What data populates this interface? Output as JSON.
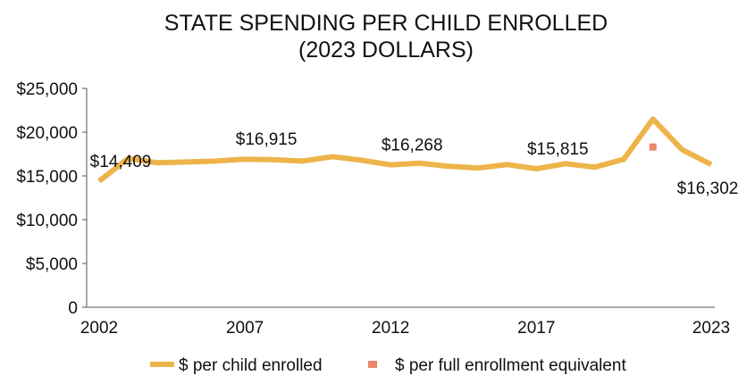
{
  "chart_data": {
    "type": "line",
    "title": "STATE SPENDING PER CHILD ENROLLED",
    "subtitle": "(2023 DOLLARS)",
    "xlabel": "",
    "ylabel": "",
    "ylim": [
      0,
      25000
    ],
    "xlim": [
      2002,
      2023
    ],
    "grid": false,
    "legend_placement": "bottom",
    "y_ticks": [
      0,
      5000,
      10000,
      15000,
      20000,
      25000
    ],
    "y_tick_labels": [
      "0",
      "$5,000",
      "$10,000",
      "$15,000",
      "$20,000",
      "$25,000"
    ],
    "x_ticks": [
      2002,
      2007,
      2012,
      2017,
      2023
    ],
    "x_tick_labels": [
      "2002",
      "2007",
      "2012",
      "2017",
      "2023"
    ],
    "series": [
      {
        "name": "$ per child enrolled",
        "kind": "line",
        "color": "#EDB44A",
        "x": [
          2002,
          2003,
          2004,
          2005,
          2006,
          2007,
          2008,
          2009,
          2010,
          2011,
          2012,
          2013,
          2014,
          2015,
          2016,
          2017,
          2018,
          2019,
          2020,
          2021,
          2022,
          2023
        ],
        "values": [
          14409,
          17000,
          16500,
          16600,
          16700,
          16915,
          16850,
          16700,
          17200,
          16800,
          16268,
          16450,
          16100,
          15900,
          16300,
          15815,
          16400,
          16000,
          16900,
          21500,
          18000,
          16302
        ]
      },
      {
        "name": "$ per full enrollment equivalent",
        "kind": "marker",
        "color": "#E8896A",
        "x": [
          2021
        ],
        "values": [
          18300
        ]
      }
    ],
    "annotations": [
      {
        "x": 2002,
        "text": "$14,409",
        "pos": "above"
      },
      {
        "x": 2007,
        "text": "$16,915",
        "pos": "above"
      },
      {
        "x": 2012,
        "text": "$16,268",
        "pos": "above"
      },
      {
        "x": 2017,
        "text": "$15,815",
        "pos": "above"
      },
      {
        "x": 2023,
        "text": "$16,302",
        "pos": "below"
      }
    ]
  }
}
